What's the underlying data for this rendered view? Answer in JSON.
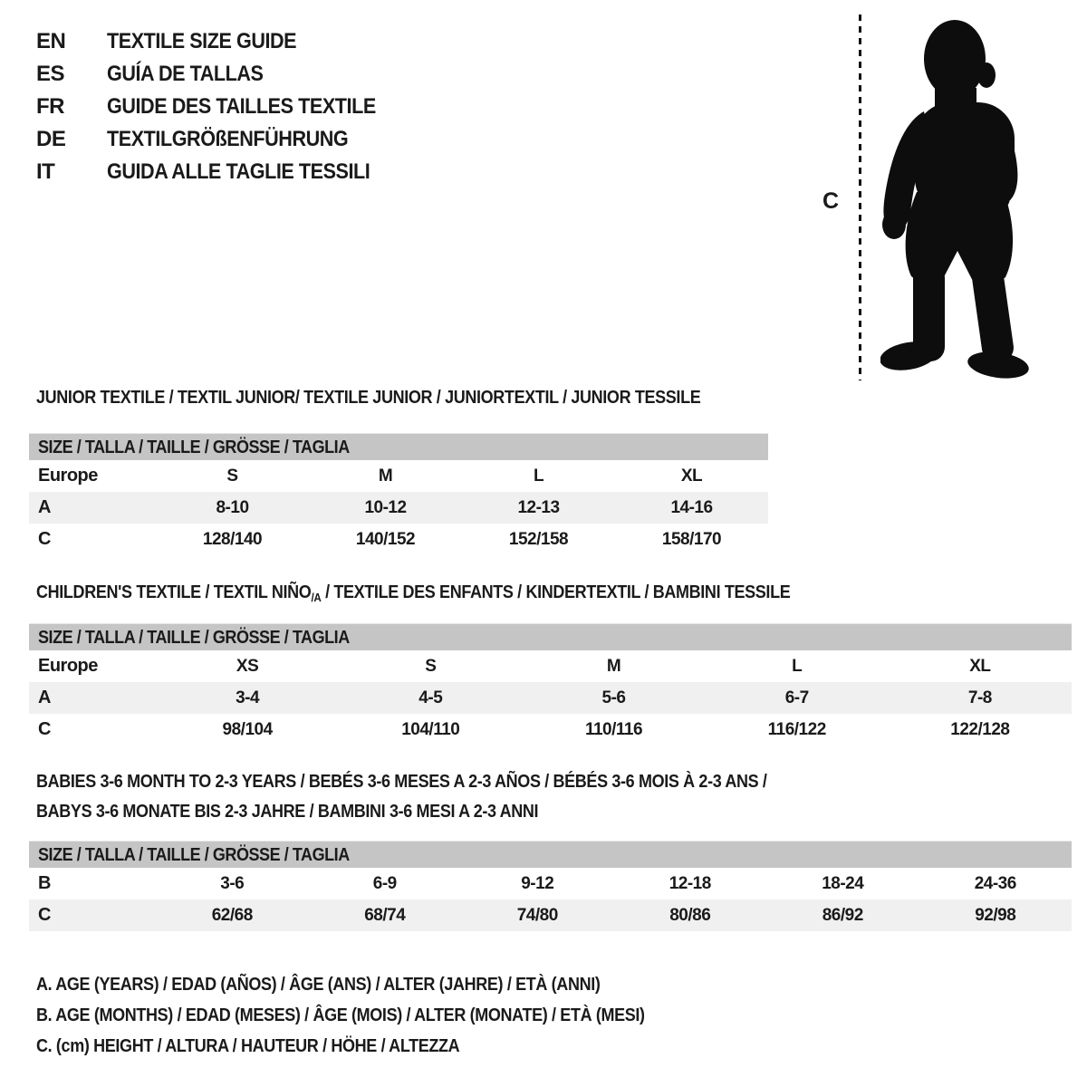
{
  "colors": {
    "background": "#ffffff",
    "text": "#1a1a1a",
    "table_header_bg": "#c5c5c5",
    "row_stripe_bg": "#f0f0f0",
    "silhouette": "#0d0d0d"
  },
  "language_list": {
    "items": [
      {
        "code": "EN",
        "title": "TEXTILE SIZE GUIDE"
      },
      {
        "code": "ES",
        "title": "GUÍA DE TALLAS"
      },
      {
        "code": "FR",
        "title": "GUIDE DES TAILLES TEXTILE"
      },
      {
        "code": "DE",
        "title": "TEXTILGRÖßENFÜHRUNG"
      },
      {
        "code": "IT",
        "title": "GUIDA ALLE TAGLIE TESSILI"
      }
    ]
  },
  "figure": {
    "measure_label": "C",
    "image": "toddler-silhouette"
  },
  "sections": [
    {
      "id": "junior",
      "title": "JUNIOR TEXTILE / TEXTIL JUNIOR/ TEXTILE JUNIOR / JUNIORTEXTIL / JUNIOR TESSILE",
      "table": {
        "size_header": "SIZE / TALLA / TAILLE / GRÖSSE / TAGLIA",
        "rows": [
          {
            "label": "Europe",
            "cells": [
              "S",
              "M",
              "L",
              "XL"
            ]
          },
          {
            "label": "A",
            "cells": [
              "8-10",
              "10-12",
              "12-13",
              "14-16"
            ]
          },
          {
            "label": "C",
            "cells": [
              "128/140",
              "140/152",
              "152/158",
              "158/170"
            ]
          }
        ]
      }
    },
    {
      "id": "children",
      "title_pre": "CHILDREN'S TEXTILE / TEXTIL NIÑO",
      "title_sub": "/A",
      "title_post": " / TEXTILE DES ENFANTS / KINDERTEXTIL / BAMBINI TESSILE",
      "table": {
        "size_header": "SIZE / TALLA / TAILLE / GRÖSSE / TAGLIA",
        "rows": [
          {
            "label": "Europe",
            "cells": [
              "XS",
              "S",
              "M",
              "L",
              "XL"
            ]
          },
          {
            "label": "A",
            "cells": [
              "3-4",
              "4-5",
              "5-6",
              "6-7",
              "7-8"
            ]
          },
          {
            "label": "C",
            "cells": [
              "98/104",
              "104/110",
              "110/116",
              "116/122",
              "122/128"
            ]
          }
        ]
      }
    },
    {
      "id": "babies",
      "title_line1": "BABIES 3-6 MONTH TO 2-3 YEARS / BEBÉS 3-6 MESES A 2-3 AÑOS / BÉBÉS 3-6 MOIS À 2-3 ANS /",
      "title_line2": "BABYS 3-6 MONATE BIS 2-3 JAHRE / BAMBINI 3-6 MESI A 2-3 ANNI",
      "table": {
        "size_header": "SIZE / TALLA / TAILLE / GRÖSSE / TAGLIA",
        "rows": [
          {
            "label": "B",
            "cells": [
              "3-6",
              "6-9",
              "9-12",
              "12-18",
              "18-24",
              "24-36"
            ]
          },
          {
            "label": "C",
            "cells": [
              "62/68",
              "68/74",
              "74/80",
              "80/86",
              "86/92",
              "92/98"
            ]
          }
        ]
      }
    }
  ],
  "footnotes": {
    "items": [
      {
        "text": "A. AGE (YEARS) / EDAD (AÑOS) / ÂGE (ANS) / ALTER (JAHRE) / ETÀ (ANNI)"
      },
      {
        "text": "B. AGE (MONTHS) / EDAD (MESES) / ÂGE (MOIS) / ALTER (MONATE) / ETÀ (MESI)"
      },
      {
        "text": "C. (cm) HEIGHT / ALTURA / HAUTEUR / HÖHE / ALTEZZA"
      }
    ]
  }
}
